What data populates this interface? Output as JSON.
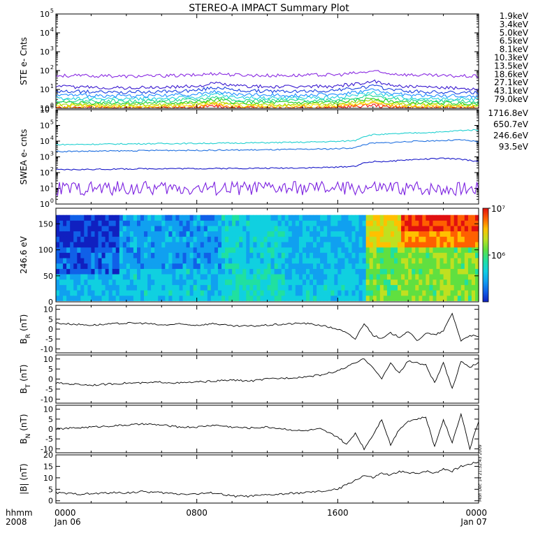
{
  "title": "STEREO-A IMPACT Summary Plot",
  "timestamp": "Mon Dec 14 21:32:43 2009",
  "time_axis": {
    "row1_label": "hhmm",
    "row2_label": "2008",
    "ticks": [
      {
        "hour": 0,
        "label": "0000",
        "date": "Jan 06"
      },
      {
        "hour": 8,
        "label": "0800",
        "date": ""
      },
      {
        "hour": 16,
        "label": "1600",
        "date": ""
      },
      {
        "hour": 24,
        "label": "0000",
        "date": "Jan 07"
      }
    ]
  },
  "chart_data": [
    {
      "type": "line",
      "name": "ste",
      "ylabel": "STE e- Cnts",
      "yscale": "log",
      "ylim": [
        1,
        100000
      ],
      "ytick_exponents": [
        0,
        1,
        2,
        3,
        4,
        5
      ],
      "x": [
        0,
        2,
        4,
        6,
        8,
        8.8,
        9.2,
        10,
        12,
        14,
        16,
        17.5,
        18,
        18.5,
        20,
        22,
        24
      ],
      "series": [
        {
          "name": "1.9keV",
          "color": "#8a2be2",
          "values": [
            55,
            52,
            50,
            52,
            58,
            68,
            72,
            60,
            55,
            56,
            60,
            80,
            95,
            75,
            60,
            52,
            50
          ]
        },
        {
          "name": "3.4keV",
          "color": "#3a1ad0",
          "values": [
            14,
            13,
            12,
            13,
            15,
            20,
            22,
            16,
            14,
            14,
            15,
            22,
            28,
            20,
            14,
            12,
            11
          ]
        },
        {
          "name": "5.0keV",
          "color": "#1a40e0",
          "values": [
            8,
            7.5,
            7,
            7.5,
            9,
            12,
            13,
            9,
            8,
            8,
            9,
            13,
            16,
            12,
            8,
            7,
            6.5
          ]
        },
        {
          "name": "6.5keV",
          "color": "#2090ff",
          "values": [
            5,
            4.8,
            4.5,
            4.8,
            5.5,
            7,
            8,
            5.5,
            5,
            5,
            5.5,
            8,
            10,
            7,
            5,
            4.5,
            4.2
          ]
        },
        {
          "name": "8.1keV",
          "color": "#20d0e0",
          "values": [
            3.5,
            3.3,
            3.2,
            3.3,
            3.8,
            5,
            5.5,
            3.8,
            3.5,
            3.5,
            3.8,
            5.5,
            7,
            5,
            3.5,
            3.2,
            3
          ]
        },
        {
          "name": "10.3keV",
          "color": "#20d890",
          "values": [
            2.6,
            2.5,
            2.4,
            2.5,
            2.8,
            3.6,
            4,
            2.8,
            2.6,
            2.6,
            2.8,
            4,
            5,
            3.6,
            2.6,
            2.4,
            2.3
          ]
        },
        {
          "name": "13.5keV",
          "color": "#20d020",
          "values": [
            2,
            1.95,
            1.9,
            1.95,
            2.1,
            2.6,
            2.9,
            2.1,
            2,
            2,
            2.1,
            2.9,
            3.6,
            2.6,
            2,
            1.9,
            1.8
          ]
        },
        {
          "name": "18.6keV",
          "color": "#a8d800",
          "values": [
            1.6,
            1.55,
            1.5,
            1.55,
            1.7,
            2.1,
            2.3,
            1.7,
            1.6,
            1.6,
            1.7,
            2.3,
            2.8,
            2.1,
            1.6,
            1.5,
            1.45
          ]
        },
        {
          "name": "27.1keV",
          "color": "#ffe000",
          "values": [
            1.35,
            1.3,
            1.3,
            1.3,
            1.4,
            1.7,
            1.9,
            1.4,
            1.35,
            1.35,
            1.4,
            1.9,
            2.2,
            1.7,
            1.35,
            1.3,
            1.25
          ]
        },
        {
          "name": "43.1keV",
          "color": "#ff8000",
          "values": [
            1.15,
            1.12,
            1.1,
            1.12,
            1.2,
            1.45,
            1.6,
            1.2,
            1.15,
            1.15,
            1.2,
            1.6,
            1.8,
            1.45,
            1.15,
            1.1,
            1.1
          ]
        },
        {
          "name": "79.0keV",
          "color": "#ee1010",
          "values": [
            1.05,
            1.03,
            1.02,
            1.03,
            1.08,
            1.25,
            1.35,
            1.08,
            1.05,
            1.05,
            1.08,
            1.35,
            1.5,
            1.25,
            1.05,
            1.02,
            1.02
          ]
        }
      ]
    },
    {
      "type": "line",
      "name": "swea",
      "ylabel": "SWEA e- cnts",
      "yscale": "log",
      "ylim": [
        1,
        1000000
      ],
      "ytick_exponents": [
        0,
        1,
        2,
        3,
        4,
        5,
        6
      ],
      "x": [
        0,
        2,
        4,
        6,
        8,
        10,
        12,
        14,
        16,
        17,
        17.5,
        18,
        19,
        20,
        22,
        23,
        24
      ],
      "series": [
        {
          "name": "1716.8eV",
          "color": "#7b20e0",
          "values": [
            10,
            10,
            10,
            10,
            10,
            10,
            10,
            10,
            10,
            10,
            10,
            10,
            10,
            10,
            10,
            10,
            10
          ]
        },
        {
          "name": "650.7eV",
          "color": "#1818c8",
          "values": [
            150,
            160,
            170,
            180,
            180,
            185,
            190,
            200,
            220,
            260,
            400,
            500,
            520,
            650,
            800,
            700,
            500
          ]
        },
        {
          "name": "246.6eV",
          "color": "#2070e0",
          "values": [
            2200,
            2300,
            2400,
            2600,
            2600,
            2700,
            2800,
            3000,
            3300,
            3800,
            6000,
            7500,
            8000,
            9500,
            11000,
            12000,
            9000
          ]
        },
        {
          "name": "93.5eV",
          "color": "#20d0d0",
          "values": [
            6000,
            6300,
            6700,
            7000,
            7200,
            7500,
            8000,
            8500,
            9500,
            11000,
            20000,
            26000,
            28000,
            32000,
            38000,
            48000,
            52000
          ]
        }
      ]
    },
    {
      "type": "heatmap",
      "name": "pad",
      "ylabel": "246.6 eV",
      "ylim": [
        0,
        180
      ],
      "yticks": [
        0,
        50,
        100,
        150
      ],
      "colorbar": {
        "scale": "log",
        "range": [
          100000,
          10000000
        ],
        "tick_labels": [
          "10⁶",
          "10⁷"
        ]
      }
    },
    {
      "type": "line",
      "name": "br",
      "ylabel": "B_R (nT)",
      "ylabel_main": "B",
      "ylabel_sub": "R",
      "ylabel_unit": " (nT)",
      "ylim": [
        -12,
        12
      ],
      "yticks": [
        10,
        5,
        0,
        -5,
        -10
      ],
      "x": [
        0,
        1,
        2,
        3,
        4,
        5,
        6,
        7,
        8,
        9,
        10,
        11,
        12,
        13,
        14,
        15,
        16,
        16.5,
        17,
        17.5,
        18,
        18.5,
        19,
        19.5,
        20,
        20.5,
        21,
        21.5,
        22,
        22.5,
        23,
        23.5,
        24
      ],
      "values": [
        3,
        2.5,
        2,
        2.5,
        3,
        3,
        2,
        2.5,
        2,
        2.8,
        1.5,
        1.5,
        2,
        2.5,
        3,
        2,
        0,
        -2,
        -5,
        3,
        -3,
        -5,
        -2,
        -4,
        -1,
        -6,
        -2,
        -3,
        -1,
        8,
        -6,
        -3,
        -4
      ]
    },
    {
      "type": "line",
      "name": "bt",
      "ylabel": "B_T (nT)",
      "ylabel_main": "B",
      "ylabel_sub": "T",
      "ylabel_unit": " (nT)",
      "ylim": [
        -12,
        12
      ],
      "yticks": [
        10,
        5,
        0,
        -5,
        -10
      ],
      "x": [
        0,
        1,
        2,
        3,
        4,
        5,
        6,
        7,
        8,
        9,
        10,
        11,
        12,
        13,
        14,
        15,
        16,
        16.5,
        17,
        17.5,
        18,
        18.5,
        19,
        19.5,
        20,
        20.5,
        21,
        21.5,
        22,
        22.5,
        23,
        23.5,
        24
      ],
      "values": [
        -2,
        -2.5,
        -3,
        -2.5,
        -2,
        -2,
        -1.5,
        -2,
        -1.5,
        -1,
        -0.5,
        -1,
        0,
        0.5,
        1,
        2,
        4,
        6,
        8,
        10,
        6,
        0,
        8,
        3,
        9,
        8,
        7,
        -2,
        8,
        -5,
        9,
        6,
        8
      ]
    },
    {
      "type": "line",
      "name": "bn",
      "ylabel": "B_N (nT)",
      "ylabel_main": "B",
      "ylabel_sub": "N",
      "ylabel_unit": " (nT)",
      "ylim": [
        -12,
        12
      ],
      "yticks": [
        10,
        5,
        0,
        -5,
        -10
      ],
      "x": [
        0,
        1,
        2,
        3,
        4,
        5,
        6,
        7,
        8,
        9,
        10,
        11,
        12,
        13,
        14,
        15,
        16,
        16.5,
        17,
        17.5,
        18,
        18.5,
        19,
        19.5,
        20,
        20.5,
        21,
        21.5,
        22,
        22.5,
        23,
        23.5,
        24
      ],
      "values": [
        0,
        0.5,
        1,
        1.5,
        2,
        2.5,
        2,
        1,
        1,
        2,
        1,
        0.5,
        1,
        0,
        -1,
        0,
        -4,
        -8,
        -2,
        -10,
        -3,
        5,
        -8,
        0,
        4,
        5,
        6,
        -9,
        5,
        -7,
        8,
        -10,
        4
      ]
    },
    {
      "type": "line",
      "name": "bmag",
      "ylabel": "|B| (nT)",
      "ylim": [
        -1,
        20
      ],
      "yticks": [
        20,
        15,
        10,
        5,
        0
      ],
      "x": [
        0,
        1,
        2,
        3,
        4,
        5,
        6,
        7,
        8,
        9,
        10,
        11,
        12,
        13,
        14,
        15,
        16,
        16.5,
        17,
        17.5,
        18,
        18.5,
        19,
        19.5,
        20,
        20.5,
        21,
        21.5,
        22,
        22.5,
        23,
        23.5,
        24
      ],
      "values": [
        3.5,
        3,
        3,
        3.5,
        3.5,
        4,
        3.5,
        3,
        3,
        3.5,
        2,
        2,
        2.5,
        3,
        3.5,
        4,
        5,
        7,
        9,
        11,
        10,
        12,
        11,
        13,
        12,
        12,
        13,
        12,
        14,
        13,
        15,
        16,
        17
      ]
    }
  ]
}
